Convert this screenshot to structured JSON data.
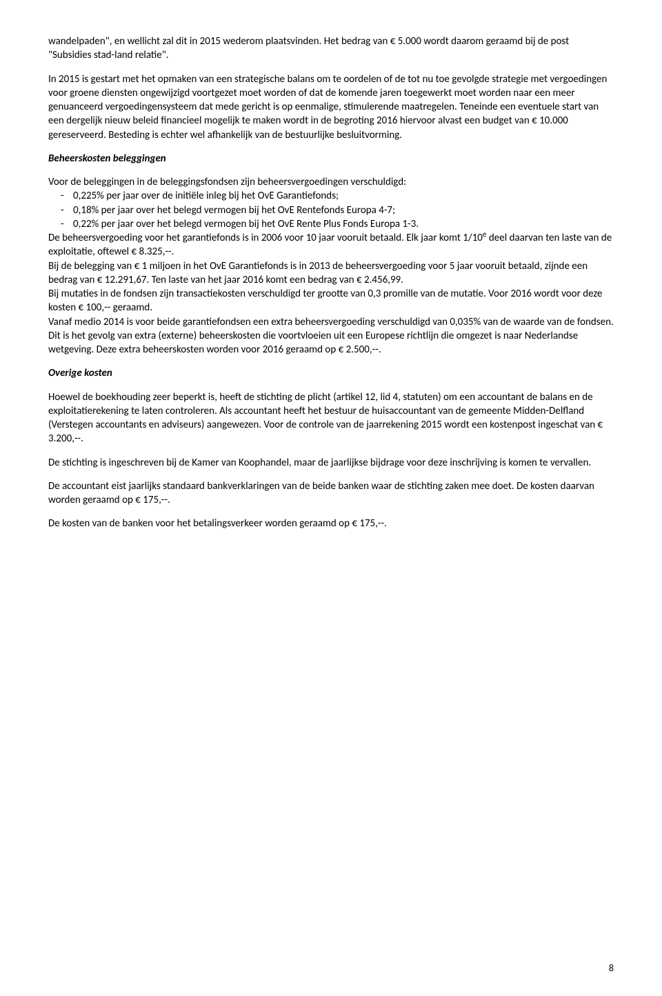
{
  "para1": "wandelpaden\", en wellicht zal dit in 2015 wederom plaatsvinden. Het bedrag van € 5.000 wordt daarom geraamd bij de post \"Subsidies stad-land relatie\".",
  "para2": "In 2015 is gestart met het opmaken van een strategische balans om te oordelen of de tot nu toe gevolgde strategie met vergoedingen voor groene diensten ongewijzigd voortgezet moet worden of dat de komende jaren toegewerkt moet worden naar een meer genuanceerd vergoedingensysteem dat mede gericht is op eenmalige, stimulerende maatregelen. Teneinde een eventuele start van een dergelijk nieuw beleid financieel mogelijk te maken wordt in de begroting 2016 hiervoor alvast een budget van € 10.000 gereserveerd. Besteding is echter wel afhankelijk van de bestuurlijke besluitvorming.",
  "heading1": "Beheerskosten beleggingen",
  "para3": "Voor de beleggingen in de beleggingsfondsen zijn beheersvergoedingen verschuldigd:",
  "bullets": [
    "0,225% per jaar over de initiële inleg bij het OvE Garantiefonds;",
    "0,18% per jaar over het belegd vermogen bij het OvE Rentefonds Europa 4-7;",
    "0,22% per jaar over het belegd vermogen bij het OvE Rente Plus Fonds Europa 1-3."
  ],
  "para4a": "De beheersvergoeding voor het garantiefonds is in 2006 voor 10 jaar vooruit betaald. Elk jaar komt 1/10",
  "para4b": " deel daarvan ten laste van de exploitatie, oftewel € 8.325,--.",
  "para5": "Bij de belegging van € 1 miljoen in het OvE Garantiefonds is in 2013 de beheersvergoeding voor 5 jaar vooruit betaald, zijnde een bedrag van € 12.291,67. Ten laste van het jaar 2016 komt een bedrag van € 2.456,99.",
  "para6": "Bij mutaties in de fondsen zijn transactiekosten verschuldigd ter grootte van 0,3 promille van de mutatie. Voor 2016 wordt voor deze kosten € 100,-- geraamd.",
  "para7": "Vanaf medio 2014 is voor beide garantiefondsen een extra beheersvergoeding verschuldigd van 0,035% van de waarde van de fondsen. Dit is het gevolg van extra (externe) beheerskosten die voortvloeien uit een Europese richtlijn die omgezet is naar Nederlandse wetgeving. Deze extra beheerskosten worden voor 2016 geraamd op € 2.500,--.",
  "heading2": "Overige kosten",
  "para8": "Hoewel de boekhouding zeer beperkt is, heeft de stichting de plicht (artikel 12, lid 4, statuten) om een accountant de balans en de exploitatierekening te laten controleren. Als accountant heeft het bestuur de huisaccountant van de gemeente Midden-Delfland (Verstegen accountants en adviseurs) aangewezen. Voor de controle van de jaarrekening 2015 wordt een kostenpost ingeschat van € 3.200,--.",
  "para9": "De stichting is ingeschreven bij de Kamer van Koophandel, maar de jaarlijkse bijdrage voor deze inschrijving is komen te vervallen.",
  "para10": "De accountant eist jaarlijks standaard bankverklaringen van de beide banken waar de stichting zaken mee doet.  De kosten daarvan worden geraamd op  € 175,--.",
  "para11": "De kosten van de banken voor het betalingsverkeer worden geraamd op € 175,--.",
  "superscript": "e",
  "pageNumber": "8"
}
